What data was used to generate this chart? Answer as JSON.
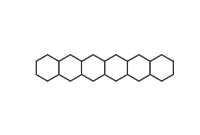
{
  "bg_color": "#ffffff",
  "line_color": "#404040",
  "lw": 1.5,
  "fontsize_label": 7.5,
  "fontsize_small": 6.5
}
